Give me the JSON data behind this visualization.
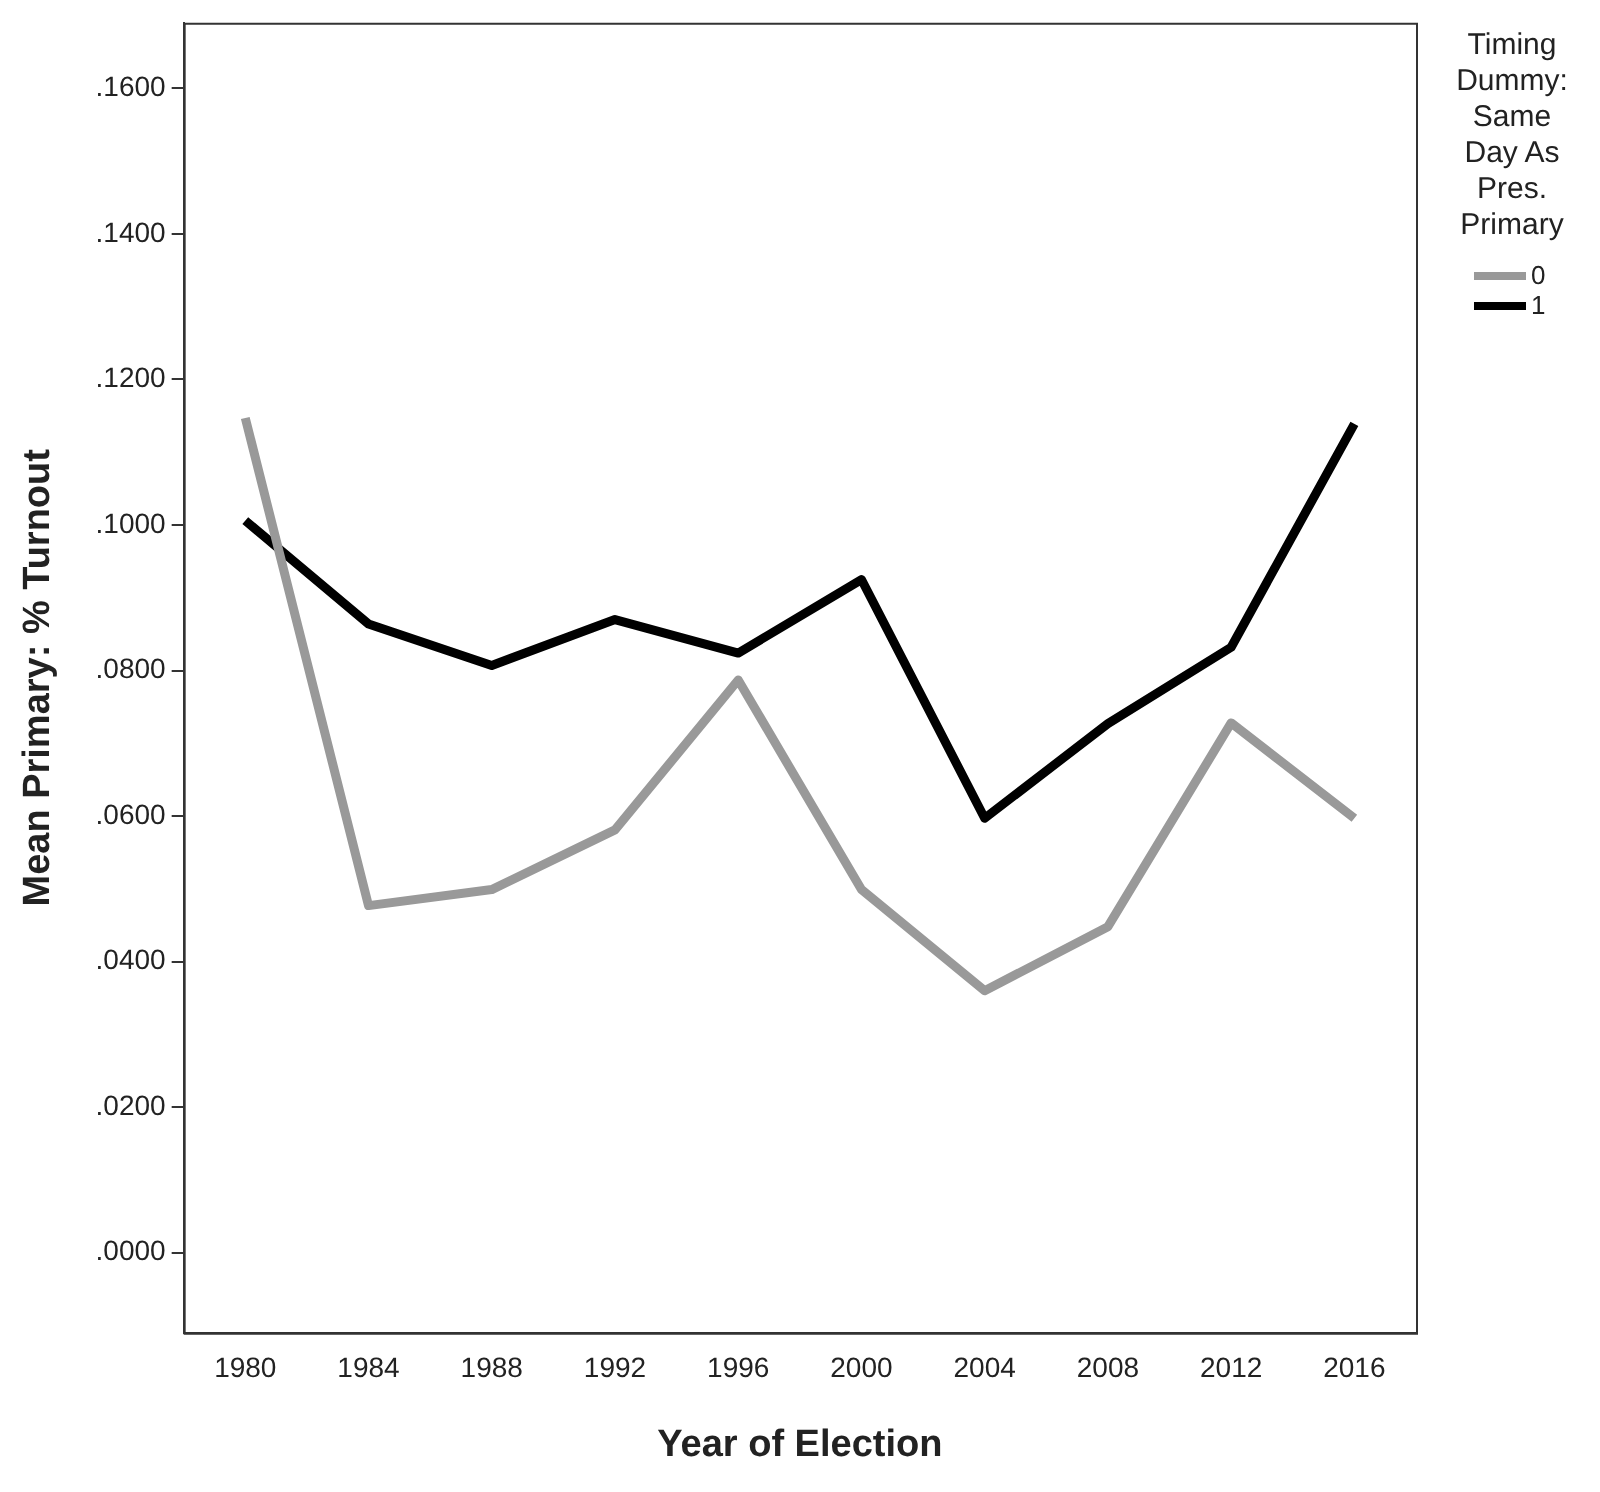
{
  "chart_data": {
    "type": "line",
    "xlabel": "Year of Election",
    "ylabel": "Mean Primary: % Turnout",
    "legend_title": "Timing Dummy: Same Day As Pres. Primary",
    "legend": "right",
    "grid": false,
    "marker": "none",
    "line_style": "solid",
    "categories": [
      "1980",
      "1984",
      "1988",
      "1992",
      "1996",
      "2000",
      "2004",
      "2008",
      "2012",
      "2016"
    ],
    "ylim": [
      -0.011,
      0.169
    ],
    "yticks": [
      {
        "value": 0,
        "label": ".0000"
      },
      {
        "value": 0.02,
        "label": ".0200"
      },
      {
        "value": 0.04,
        "label": ".0400"
      },
      {
        "value": 0.06,
        "label": ".0600"
      },
      {
        "value": 0.08,
        "label": ".0800"
      },
      {
        "value": 0.1,
        "label": ".1000"
      },
      {
        "value": 0.12,
        "label": ".1200"
      },
      {
        "value": 0.14,
        "label": ".1400"
      },
      {
        "value": 0.16,
        "label": ".1600"
      }
    ],
    "series": [
      {
        "name": "0",
        "color": "#999999",
        "values": [
          0.1147,
          0.0477,
          0.0499,
          0.0581,
          0.0787,
          0.0499,
          0.036,
          0.0448,
          0.0728,
          0.0597
        ]
      },
      {
        "name": "1",
        "color": "#000000",
        "values": [
          0.1006,
          0.0864,
          0.0807,
          0.087,
          0.0824,
          0.0925,
          0.0597,
          0.0727,
          0.0832,
          0.1139
        ]
      }
    ]
  }
}
